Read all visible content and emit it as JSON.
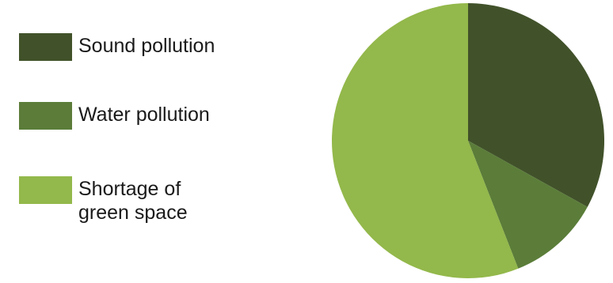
{
  "chart_data": {
    "type": "pie",
    "title": "",
    "legend_position": "left",
    "slices": [
      {
        "name": "Sound pollution",
        "value": 33,
        "color": "#41522a"
      },
      {
        "name": "Water pollution",
        "value": 11,
        "color": "#5b7d39"
      },
      {
        "name": "Shortage of\ngreen space",
        "value": 56,
        "color": "#93b84b"
      }
    ]
  }
}
